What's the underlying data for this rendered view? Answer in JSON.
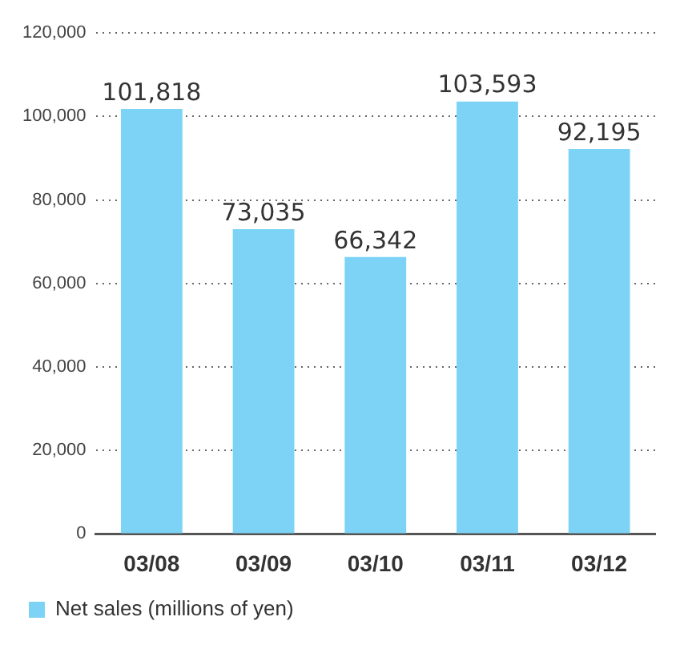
{
  "chart_data": {
    "type": "bar",
    "categories": [
      "03/08",
      "03/09",
      "03/10",
      "03/11",
      "03/12"
    ],
    "series": [
      {
        "name": "Net sales (millions of yen)",
        "color": "#7dd3f5",
        "values": [
          101818,
          73035,
          66342,
          103593,
          92195
        ],
        "value_labels": [
          "101,818",
          "73,035",
          "66,342",
          "103,593",
          "92,195"
        ]
      }
    ],
    "ylim": [
      0,
      120000
    ],
    "yticks": [
      0,
      {
        "value": 20000,
        "label": "20,000"
      },
      {
        "value": 40000,
        "label": "40,000"
      },
      {
        "value": 60000,
        "label": "60,000"
      },
      {
        "value": 80000,
        "label": "80,000"
      },
      {
        "value": 100000,
        "label": "100,000"
      },
      {
        "value": 120000,
        "label": "120,000"
      }
    ],
    "grid": "y",
    "legend": "bottom left"
  }
}
